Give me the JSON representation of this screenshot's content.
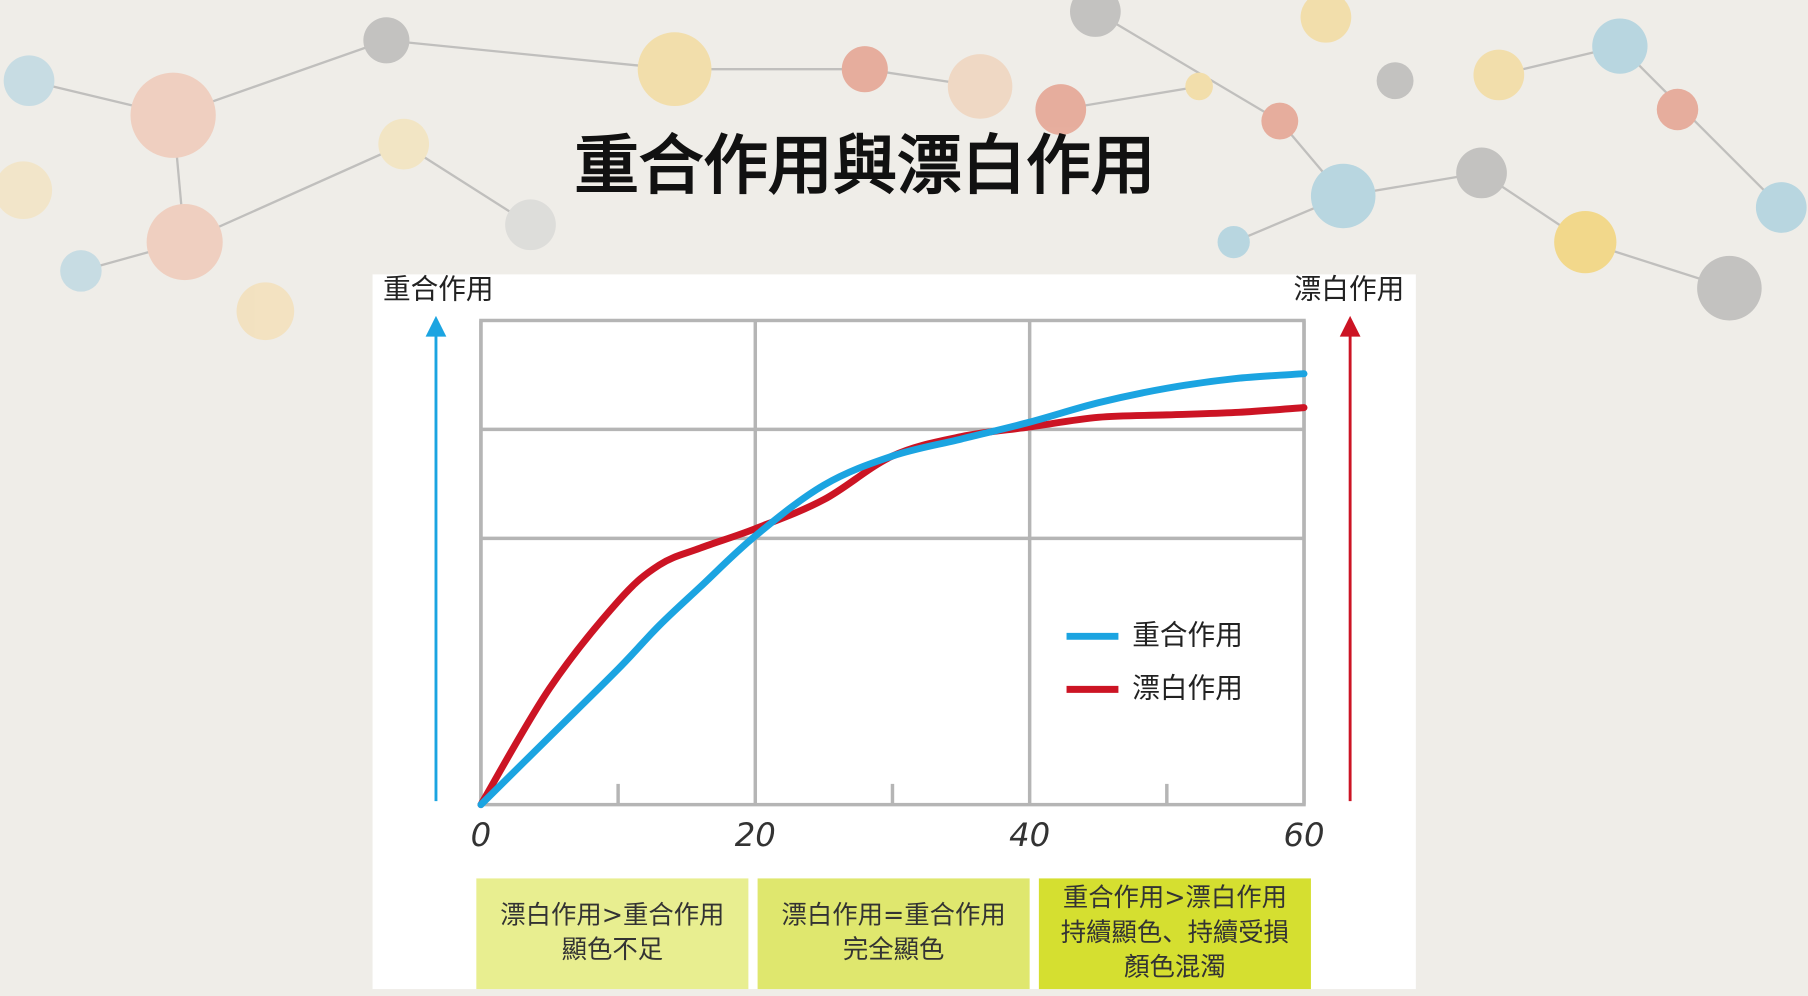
{
  "chart_data": {
    "type": "line",
    "title": "重合作用與漂白作用",
    "y_label_left": "重合作用",
    "y_label_right": "漂白作用",
    "x": [
      0,
      5,
      10,
      13,
      16,
      20,
      25,
      30,
      35,
      40,
      45,
      50,
      55,
      60
    ],
    "series": [
      {
        "name": "重合作用",
        "color": "#1ba4e1",
        "values": [
          0,
          14,
          28,
          37,
          45,
          55.5,
          66,
          72,
          75.5,
          79,
          83,
          86,
          88,
          89
        ]
      },
      {
        "name": "漂白作用",
        "color": "#cc1424",
        "values": [
          0,
          24,
          42,
          49.5,
          53,
          57,
          63,
          72,
          76,
          78,
          80,
          80.5,
          81,
          82
        ]
      }
    ],
    "xlim": [
      0,
      60
    ],
    "xticks": [
      0,
      20,
      40,
      60
    ],
    "xminor": [
      10,
      30,
      50
    ],
    "ylim": [
      0,
      100
    ],
    "yticks": [
      55,
      77.5
    ],
    "grid": true,
    "annotations": [
      [
        "漂白作用>重合作用",
        "顯色不足"
      ],
      [
        "漂白作用=重合作用",
        "完全顯色"
      ],
      [
        "重合作用>漂白作用",
        "持續顯色、持續受損",
        "顏色混濁"
      ]
    ]
  }
}
